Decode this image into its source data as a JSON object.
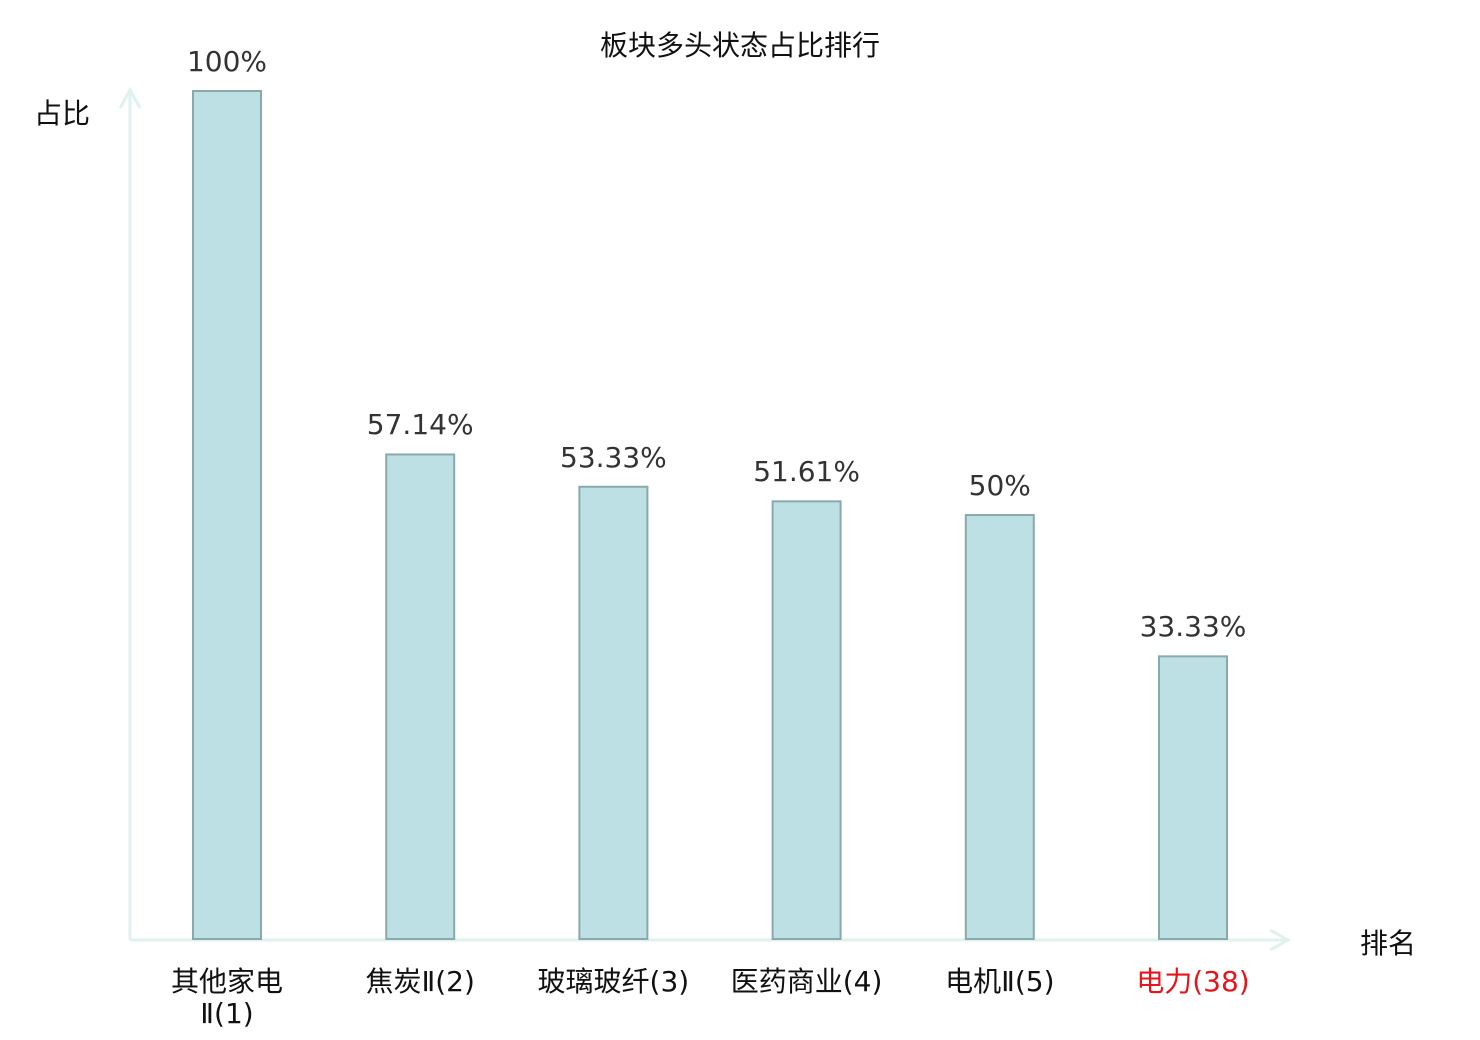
{
  "chart_data": {
    "type": "bar",
    "title": "板块多头状态占比排行",
    "ylabel": "占比",
    "xlabel": "排名",
    "categories": [
      "其他家电Ⅱ(1)",
      "焦炭Ⅱ(2)",
      "玻璃玻纤(3)",
      "医药商业(4)",
      "电机Ⅱ(5)",
      "电力(38)"
    ],
    "values": [
      100,
      57.14,
      53.33,
      51.61,
      50,
      33.33
    ],
    "data_labels": [
      "100%",
      "57.14%",
      "53.33%",
      "51.61%",
      "50%",
      "33.33%"
    ],
    "ylim": [
      0,
      100
    ],
    "grid": false,
    "colors": {
      "bar_fill": "#bce0e3",
      "bar_stroke": "#8aa9aa",
      "axis": "#dff2ef",
      "highlight_label": "#e8141c"
    },
    "highlight_category": "电力(38)"
  }
}
